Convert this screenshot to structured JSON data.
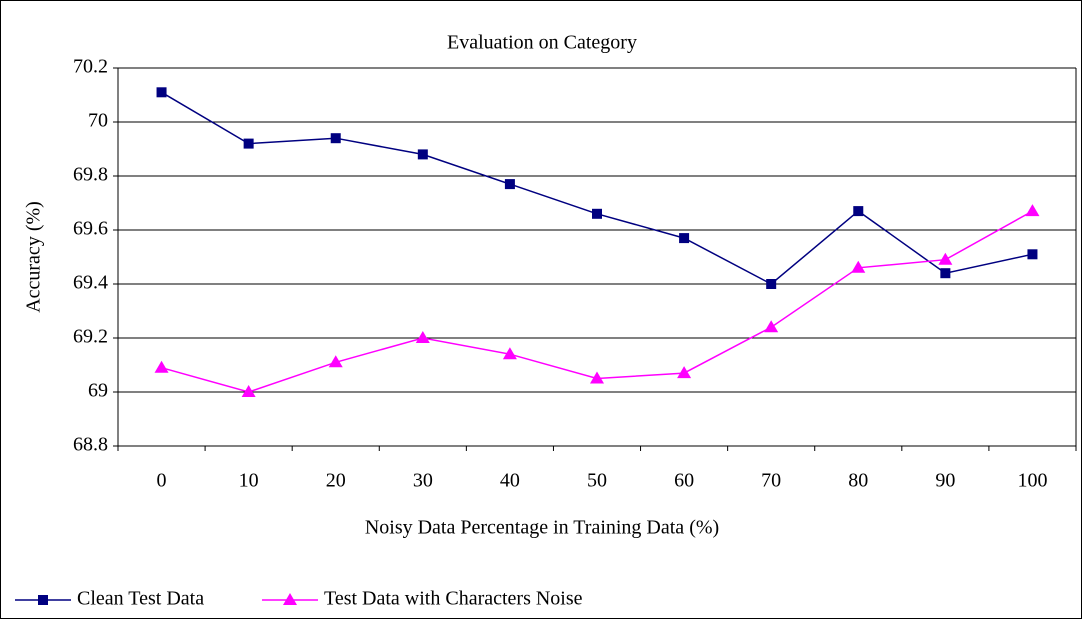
{
  "chart_data": {
    "type": "line",
    "title": "Evaluation on Category",
    "xlabel": "Noisy Data Percentage in Training Data (%)",
    "ylabel": "Accuracy (%)",
    "categories": [
      "0",
      "10",
      "20",
      "30",
      "40",
      "50",
      "60",
      "70",
      "80",
      "90",
      "100"
    ],
    "series": [
      {
        "name": "Clean Test Data",
        "color": "#000080",
        "marker": "square",
        "values": [
          70.11,
          69.92,
          69.94,
          69.88,
          69.77,
          69.66,
          69.57,
          69.4,
          69.67,
          69.44,
          69.51
        ]
      },
      {
        "name": "Test Data with Characters Noise",
        "color": "#ff00ff",
        "marker": "triangle",
        "values": [
          69.09,
          69.0,
          69.11,
          69.2,
          69.14,
          69.05,
          69.07,
          69.24,
          69.46,
          69.49,
          69.67
        ]
      }
    ],
    "ylim": [
      68.8,
      70.2
    ],
    "yticks": [
      68.8,
      69,
      69.2,
      69.4,
      69.6,
      69.8,
      70,
      70.2
    ],
    "grid": true,
    "legend": "bottom-left"
  }
}
